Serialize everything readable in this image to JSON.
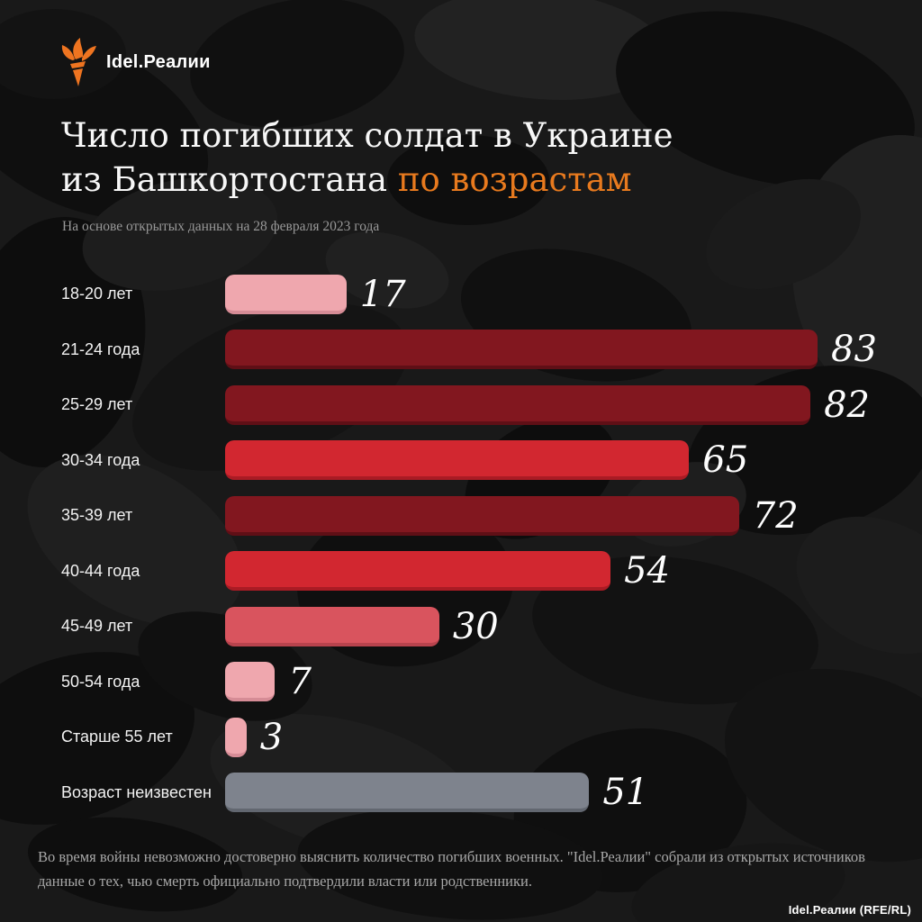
{
  "logo": {
    "brand": "Idel.Реалии"
  },
  "header": {
    "title_line1": "Число погибших солдат в Украине",
    "title_line2_white": "из Башкортостана ",
    "title_line2_accent": "по возрастам",
    "accent_color": "#e87a1e",
    "subtitle": "На основе открытых данных на 28 февраля 2023 года"
  },
  "chart_data": {
    "type": "bar",
    "orientation": "horizontal",
    "title": "Число погибших солдат в Украине из Башкортостана по возрастам",
    "categories": [
      "18-20 лет",
      "21-24 года",
      "25-29 лет",
      "30-34 года",
      "35-39 лет",
      "40-44 года",
      "45-49 лет",
      "50-54 года",
      "Старше 55 лет",
      "Возраст неизвестен"
    ],
    "values": [
      17,
      83,
      82,
      65,
      72,
      54,
      30,
      7,
      3,
      51
    ],
    "bar_colors": [
      "#efa7ae",
      "#82171f",
      "#82171f",
      "#d22730",
      "#82171f",
      "#d22730",
      "#d9545e",
      "#efa7ae",
      "#efa7ae",
      "#7e838d"
    ],
    "bar_shadow_colors": [
      "#d68c96",
      "#5f0f16",
      "#5f0f16",
      "#aa1b24",
      "#5f0f16",
      "#aa1b24",
      "#b8434d",
      "#d68c96",
      "#d68c96",
      "#626770"
    ],
    "xlim": [
      0,
      83
    ],
    "grid": false,
    "value_label_position": "right-of-bar"
  },
  "footer": {
    "note": "Во время войны невозможно достоверно выяснить количество погибших военных. \"Idel.Реалии\" собрали из открытых источников данные о тех, чью смерть официально подтвердили власти или родственники.",
    "credit": "Idel.Реалии (RFE/RL)"
  }
}
